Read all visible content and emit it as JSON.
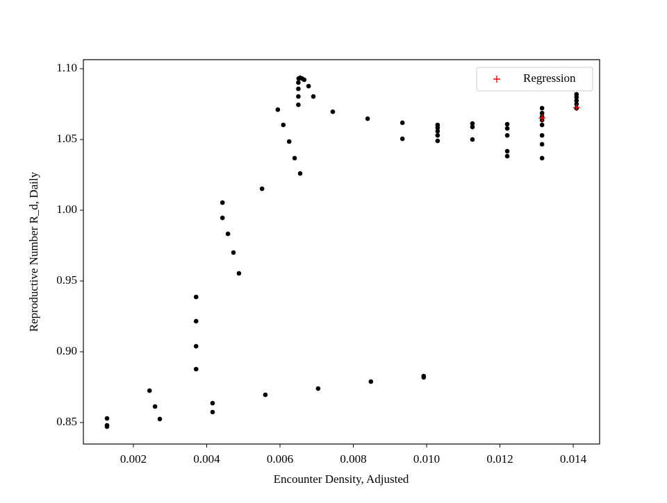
{
  "chart_data": {
    "type": "scatter",
    "xlabel": "Encounter Density, Adjusted",
    "ylabel": "Reproductive Number R_d, Daily",
    "xlim": [
      0.000635,
      0.01472
    ],
    "ylim": [
      0.8348,
      1.1064
    ],
    "xticks": [
      0.002,
      0.004,
      0.006,
      0.008,
      {
        "value": 0.01,
        "label": "0.010"
      },
      0.012,
      0.014
    ],
    "yticks": [
      0.85,
      {
        "value": 0.9,
        "label": "0.90"
      },
      0.95,
      {
        "value": 1,
        "label": "1.00"
      },
      1.05,
      {
        "value": 1.1,
        "label": "1.10"
      }
    ],
    "grid": false,
    "legend": "upper right",
    "series": [
      {
        "color": "#000000",
        "marker": "o",
        "x": [
          0.00128,
          0.00128,
          0.00128,
          0.00244,
          0.00259,
          0.00272,
          0.00371,
          0.00371,
          0.00371,
          0.00371,
          0.00416,
          0.00416,
          0.00443,
          0.00443,
          0.00458,
          0.00473,
          0.00488,
          0.00551,
          0.0056,
          0.00594,
          0.00609,
          0.00625,
          0.0064,
          0.0065,
          0.0065,
          0.0065,
          0.0065,
          0.00651,
          0.00655,
          0.0066,
          0.00666,
          0.00655,
          0.00678,
          0.00691,
          0.00704,
          0.00744,
          0.00839,
          0.00848,
          0.00934,
          0.00934,
          0.00992,
          0.00992,
          0.0103,
          0.0103,
          0.0103,
          0.0103,
          0.0103,
          0.01125,
          0.01125,
          0.01125,
          0.0122,
          0.0122,
          0.0122,
          0.0122,
          0.0122,
          0.01315,
          0.01315,
          0.01315,
          0.01315,
          0.01315,
          0.01315,
          0.01315,
          0.01315,
          0.01409,
          0.01409,
          0.01409,
          0.01409,
          0.01409
        ],
        "values": [
          0.8529,
          0.848,
          0.8471,
          0.8725,
          0.8613,
          0.8525,
          0.9387,
          0.9216,
          0.9039,
          0.8877,
          0.8637,
          0.8574,
          1.0054,
          0.9946,
          0.9833,
          0.9701,
          0.9554,
          1.0152,
          0.8696,
          1.0711,
          1.0603,
          1.0485,
          1.0368,
          1.0745,
          1.0804,
          1.0858,
          1.0902,
          1.0931,
          1.0936,
          1.0931,
          1.0922,
          1.026,
          1.0877,
          1.0804,
          0.874,
          1.0696,
          1.0647,
          0.8789,
          1.0618,
          1.0505,
          0.8828,
          0.8819,
          1.0603,
          1.0583,
          1.0559,
          1.0529,
          1.049,
          1.0613,
          1.0588,
          1.05,
          1.0608,
          1.0578,
          1.0529,
          1.0417,
          1.0382,
          1.0721,
          1.0686,
          1.0662,
          1.0637,
          1.0603,
          1.0529,
          1.0466,
          1.0368,
          1.0819,
          1.0799,
          1.0775,
          1.075,
          1.0721
        ]
      },
      {
        "name": "Regression",
        "color": "#ff0000",
        "marker": "+",
        "x": [
          0.01315,
          0.01409
        ],
        "values": [
          1.0652,
          1.0725
        ]
      }
    ]
  }
}
